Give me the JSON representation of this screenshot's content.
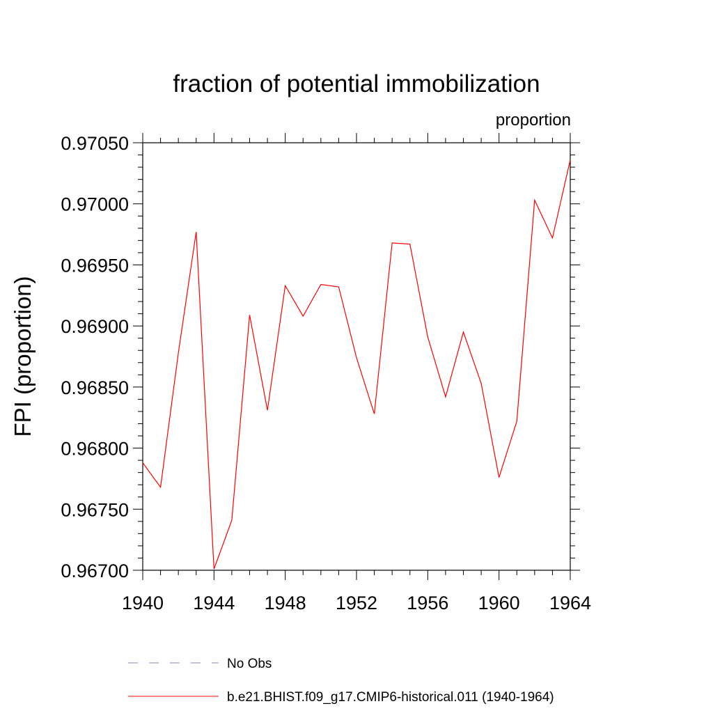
{
  "chart_data": {
    "type": "line",
    "title": "fraction of potential immobilization",
    "units_label": "proportion",
    "ylabel": "FPI  (proportion)",
    "xlabel": "",
    "xlim": [
      1940,
      1964
    ],
    "ylim": [
      0.967,
      0.9705
    ],
    "x_ticks": [
      "1940",
      "1944",
      "1948",
      "1952",
      "1956",
      "1960",
      "1964"
    ],
    "y_ticks": [
      "0.96700",
      "0.96750",
      "0.96800",
      "0.96850",
      "0.96900",
      "0.96950",
      "0.97000",
      "0.97050"
    ],
    "series": [
      {
        "name": "b.e21.BHIST.f09_g17.CMIP6-historical.011 (1940-1964)",
        "color": "#ff0000",
        "style": "solid",
        "x": [
          1940,
          1941,
          1942,
          1943,
          1944,
          1945,
          1946,
          1947,
          1948,
          1949,
          1950,
          1951,
          1952,
          1953,
          1954,
          1955,
          1956,
          1957,
          1958,
          1959,
          1960,
          1961,
          1962,
          1963,
          1964
        ],
        "y": [
          0.96788,
          0.96768,
          0.96878,
          0.96977,
          0.96701,
          0.96741,
          0.96909,
          0.96831,
          0.96933,
          0.96908,
          0.96934,
          0.96932,
          0.96874,
          0.96828,
          0.96968,
          0.96967,
          0.96891,
          0.96842,
          0.96895,
          0.96853,
          0.96776,
          0.96822,
          0.97003,
          0.96972,
          0.97036
        ]
      }
    ],
    "legend": [
      {
        "label": "No Obs",
        "color": "#8080c0",
        "style": "dashed"
      },
      {
        "label": "b.e21.BHIST.f09_g17.CMIP6-historical.011 (1940-1964)",
        "color": "#ff0000",
        "style": "solid"
      }
    ],
    "grid": false,
    "legend_position": "bottom"
  }
}
